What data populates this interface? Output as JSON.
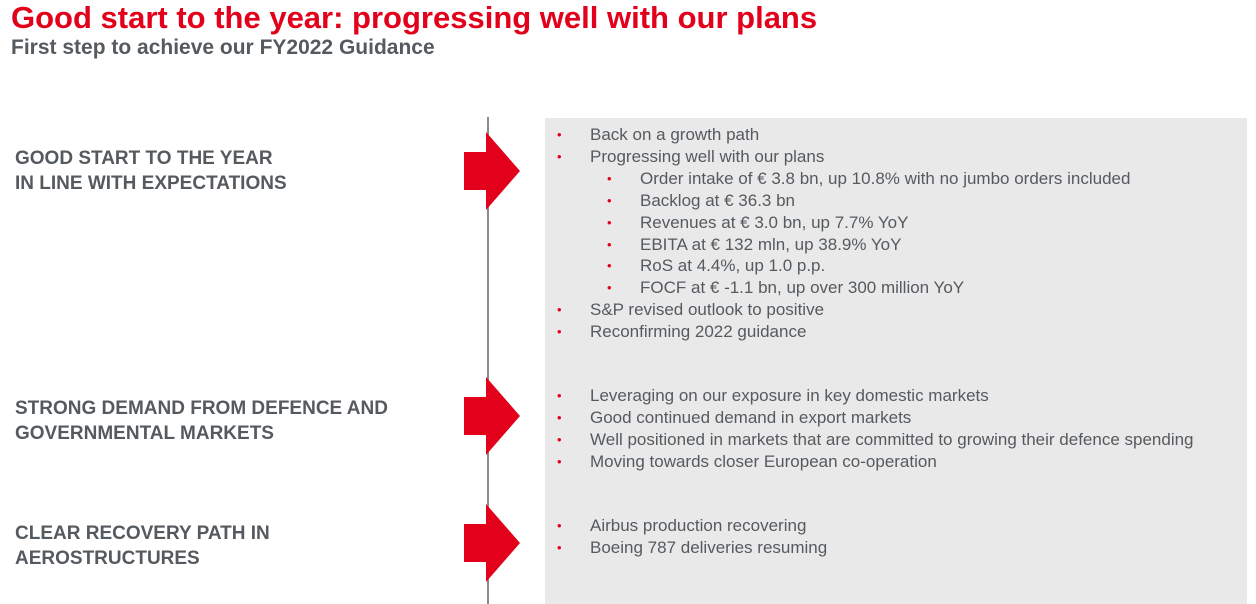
{
  "header": {
    "title": "Good start to the year: progressing well with our plans",
    "subtitle": "First step to achieve our FY2022 Guidance"
  },
  "colors": {
    "accent": "#e2001a",
    "text": "#555a5f",
    "panel": "#e9e9e9"
  },
  "sections": [
    {
      "label_line1": "GOOD START TO THE YEAR",
      "label_line2": "IN LINE WITH EXPECTATIONS",
      "bullets": [
        {
          "text": "Back on a growth path",
          "level": 1
        },
        {
          "text": "Progressing well with our plans",
          "level": 1
        },
        {
          "text": "Order intake of € 3.8 bn, up 10.8% with no jumbo orders included",
          "level": 2
        },
        {
          "text": "Backlog at € 36.3 bn",
          "level": 2
        },
        {
          "text": "Revenues at € 3.0 bn, up 7.7% YoY",
          "level": 2
        },
        {
          "text": "EBITA at € 132 mln, up 38.9% YoY",
          "level": 2
        },
        {
          "text": "RoS at 4.4%, up 1.0 p.p.",
          "level": 2
        },
        {
          "text": "FOCF at € -1.1 bn, up over 300 million YoY",
          "level": 2
        },
        {
          "text": "S&P revised outlook to positive",
          "level": 1
        },
        {
          "text": "Reconfirming 2022 guidance",
          "level": 1
        }
      ]
    },
    {
      "label_line1": "STRONG DEMAND FROM DEFENCE AND",
      "label_line2": "GOVERNMENTAL MARKETS",
      "bullets": [
        {
          "text": "Leveraging on our exposure in key domestic markets",
          "level": 1
        },
        {
          "text": "Good continued demand in export markets",
          "level": 1
        },
        {
          "text": "Well positioned in markets that are committed to growing their defence spending",
          "level": 1
        },
        {
          "text": "Moving towards closer European co-operation",
          "level": 1
        }
      ]
    },
    {
      "label_line1": "CLEAR RECOVERY PATH IN",
      "label_line2": "AEROSTRUCTURES",
      "bullets": [
        {
          "text": "Airbus production recovering",
          "level": 1
        },
        {
          "text": "Boeing 787 deliveries resuming",
          "level": 1
        }
      ]
    }
  ],
  "bullet_glyph": "•",
  "icons": {
    "section_arrow": "right-arrow-icon"
  }
}
